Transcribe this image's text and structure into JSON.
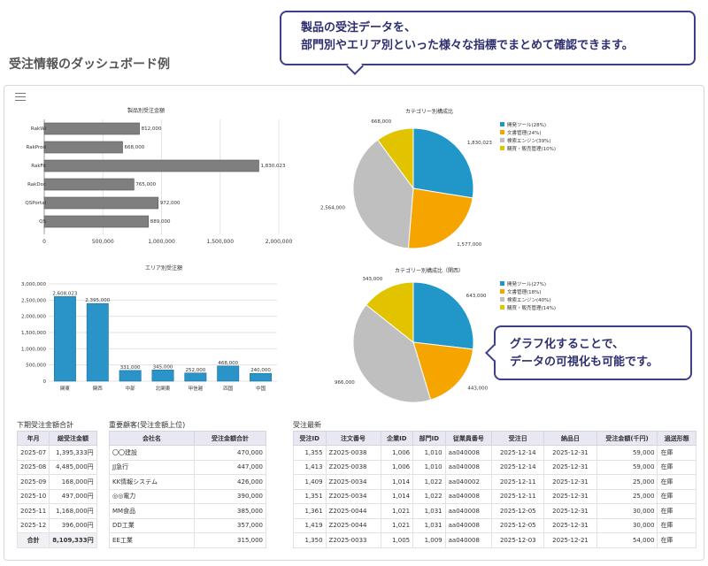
{
  "page_title": "受注情報のダッシュボード例",
  "callouts": {
    "top_line1": "製品の受注データを、",
    "top_line2": "部門別やエリア別といった様々な指標でまとめて確認できます。",
    "mid_line1": "グラフ化することで、",
    "mid_line2": "データの可視化も可能です。"
  },
  "icons": {
    "menu": "hamburger-menu-icon"
  },
  "colors": {
    "bar_gray": "#7f7f7f",
    "bar_blue": "#2a93c8",
    "pie_blue": "#2196c9",
    "pie_orange": "#f5a400",
    "pie_gray": "#bfbfbf",
    "pie_yellow": "#e1c300",
    "accent": "#3d3f8a"
  },
  "chart_data": [
    {
      "type": "bar",
      "orientation": "horizontal",
      "title": "製品別受注金額",
      "categories": [
        "RakWi",
        "RakProd",
        "RakFit",
        "RakDoc",
        "QSPortal",
        "QS"
      ],
      "values": [
        812000,
        668000,
        1830023,
        765000,
        972000,
        889000
      ],
      "value_labels": [
        "812,000",
        "668,000",
        "1,830,023",
        "765,000",
        "972,000",
        "889,000"
      ],
      "xlim": [
        0,
        2000000
      ],
      "x_ticks": [
        "0",
        "500,000",
        "1,000,000",
        "1,500,000",
        "2,000,000"
      ],
      "grid": true
    },
    {
      "type": "pie",
      "title": "カテゴリー別構成比",
      "legend_position": "right",
      "slices": [
        {
          "label": "開発ツール(28%)",
          "value": 1830023,
          "value_label": "1,830,023"
        },
        {
          "label": "文書管理(24%)",
          "value": 1577000,
          "value_label": "1,577,000"
        },
        {
          "label": "検索エンジン(39%)",
          "value": 2564000,
          "value_label": "2,564,000"
        },
        {
          "label": "購買・販売管理(10%)",
          "value": 668000,
          "value_label": "668,000"
        }
      ]
    },
    {
      "type": "bar",
      "title": "エリア別受注額",
      "categories": [
        "関東",
        "関西",
        "中部",
        "北関東",
        "甲信越",
        "四国",
        "中国"
      ],
      "values": [
        2608023,
        2395000,
        331000,
        345000,
        252000,
        468000,
        240000
      ],
      "value_labels": [
        "2,608,023",
        "2,395,000",
        "331,000",
        "345,000",
        "252,000",
        "468,000",
        "240,000"
      ],
      "ylim": [
        0,
        3000000
      ],
      "y_ticks": [
        "0",
        "500,000",
        "1,000,000",
        "1,500,000",
        "2,000,000",
        "2,500,000",
        "3,000,000"
      ],
      "grid": true
    },
    {
      "type": "pie",
      "title": "カテゴリー別構成比（関西）",
      "legend_position": "right",
      "slices": [
        {
          "label": "開発ツール(27%)",
          "value": 643000,
          "value_label": "643,000"
        },
        {
          "label": "文書管理(18%)",
          "value": 443000,
          "value_label": "443,000"
        },
        {
          "label": "検索エンジン(40%)",
          "value": 966000,
          "value_label": "966,000"
        },
        {
          "label": "購買・販売管理(14%)",
          "value": 343000,
          "value_label": "343,000"
        }
      ]
    }
  ],
  "table_half": {
    "title": "下期受注金額合計",
    "headers": [
      "年月",
      "総受注金額"
    ],
    "rows": [
      [
        "2025-07",
        "1,395,333円"
      ],
      [
        "2025-08",
        "4,485,000円"
      ],
      [
        "2025-09",
        "168,000円"
      ],
      [
        "2025-10",
        "497,000円"
      ],
      [
        "2025-11",
        "1,168,000円"
      ],
      [
        "2025-12",
        "396,000円"
      ]
    ],
    "total": [
      "合計",
      "8,109,333円"
    ]
  },
  "table_clients": {
    "title": "重要顧客(受注金額上位)",
    "headers": [
      "会社名",
      "受注金額合計"
    ],
    "rows": [
      [
        "〇〇建設",
        "470,000"
      ],
      [
        "JJ急行",
        "447,000"
      ],
      [
        "KK情報システム",
        "426,000"
      ],
      [
        "◎◎電力",
        "390,000"
      ],
      [
        "MM食品",
        "385,000"
      ],
      [
        "DD工業",
        "357,000"
      ],
      [
        "EE工業",
        "315,000"
      ]
    ]
  },
  "table_orders": {
    "title": "受注最新",
    "headers": [
      "受注ID",
      "注文番号",
      "企業ID",
      "部門ID",
      "従業員番号",
      "受注日",
      "納品日",
      "受注金額(千円)",
      "過送形態"
    ],
    "rows": [
      [
        "1,355",
        "Z2025-0038",
        "1,006",
        "1,010",
        "aa040008",
        "2025-12-14",
        "2025-12-31",
        "59,000",
        "在庫"
      ],
      [
        "1,413",
        "Z2025-0038",
        "1,006",
        "1,010",
        "aa040008",
        "2025-12-14",
        "2025-12-31",
        "59,000",
        "在庫"
      ],
      [
        "1,409",
        "Z2025-0034",
        "1,014",
        "1,022",
        "aa040002",
        "2025-12-11",
        "2025-12-31",
        "25,000",
        "在庫"
      ],
      [
        "1,351",
        "Z2025-0034",
        "1,014",
        "1,022",
        "aa040008",
        "2025-12-11",
        "2025-12-31",
        "25,000",
        "在庫"
      ],
      [
        "1,361",
        "Z2025-0044",
        "1,021",
        "1,031",
        "aa040008",
        "2025-12-05",
        "2025-12-31",
        "30,000",
        "在庫"
      ],
      [
        "1,419",
        "Z2025-0044",
        "1,021",
        "1,031",
        "aa040008",
        "2025-12-05",
        "2025-12-31",
        "30,000",
        "在庫"
      ],
      [
        "1,350",
        "Z2025-0033",
        "1,005",
        "1,009",
        "aa040008",
        "2025-12-03",
        "2025-12-21",
        "54,000",
        "在庫"
      ]
    ]
  }
}
